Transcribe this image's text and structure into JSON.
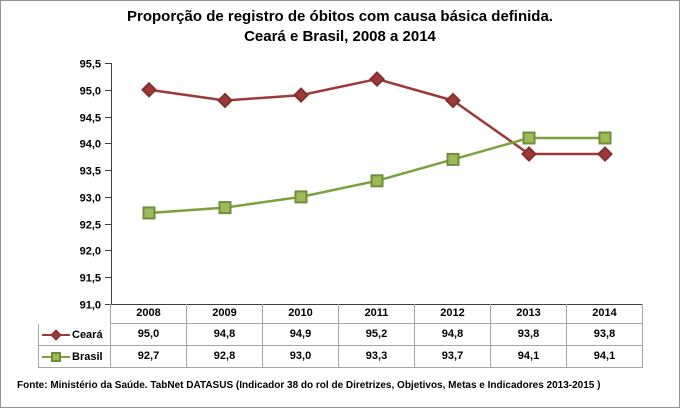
{
  "title": {
    "line1": "Proporção de registro de óbitos com causa básica definida.",
    "line2": "Ceará e Brasil, 2008 a 2014"
  },
  "chart_data": {
    "type": "line",
    "title": "Proporção de registro de óbitos com causa básica definida. Ceará e Brasil, 2008 a 2014",
    "categories": [
      "2008",
      "2009",
      "2010",
      "2011",
      "2012",
      "2013",
      "2014"
    ],
    "series": [
      {
        "name": "Ceará",
        "values": [
          95.0,
          94.8,
          94.9,
          95.2,
          94.8,
          93.8,
          93.8
        ],
        "value_labels": [
          "95,0",
          "94,8",
          "94,9",
          "95,2",
          "94,8",
          "93,8",
          "93,8"
        ],
        "color": "#9a3b38",
        "marker": "diamond",
        "marker_fill": "#9a3b38",
        "marker_stroke": "#832f2d"
      },
      {
        "name": "Brasil",
        "values": [
          92.7,
          92.8,
          93.0,
          93.3,
          93.7,
          94.1,
          94.1
        ],
        "value_labels": [
          "92,7",
          "92,8",
          "93,0",
          "93,3",
          "93,7",
          "94,1",
          "94,1"
        ],
        "color": "#7ba03e",
        "marker": "square",
        "marker_fill": "#9fba59",
        "marker_stroke": "#6e8e3a"
      }
    ],
    "ylim": [
      91.0,
      95.5
    ],
    "ytick_step": 0.5,
    "ytick_labels": [
      "95,5",
      "95,0",
      "94,5",
      "94,0",
      "93,5",
      "93,0",
      "92,5",
      "92,0",
      "91,5",
      "91,0"
    ],
    "grid": false,
    "legend_position": "data-table-left",
    "data_table_shown": true,
    "axis_color": "#3f3f3f",
    "table_border_color": "#a6a6a6"
  },
  "footer": {
    "source": "Fonte: Ministério da Saúde. TabNet DATASUS (Indicador 38 do rol de Diretrizes, Objetivos, Metas e Indicadores 2013-2015 )"
  }
}
